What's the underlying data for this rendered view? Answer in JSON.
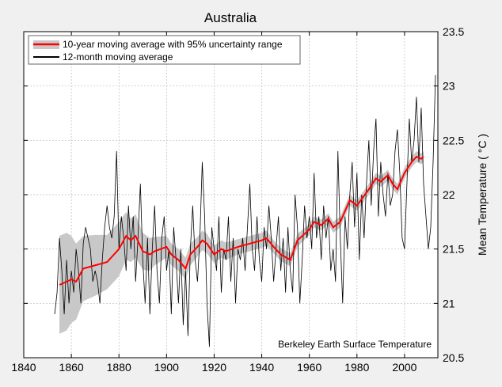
{
  "chart_data": {
    "type": "line",
    "title": "Australia",
    "xlabel": "",
    "ylabel": "Mean Temperature ( °C )",
    "annotation": "Berkeley Earth Surface Temperature",
    "xlim": [
      1840,
      2014
    ],
    "ylim": [
      20.5,
      23.5
    ],
    "xticks": [
      1840,
      1860,
      1880,
      1900,
      1920,
      1940,
      1960,
      1980,
      2000
    ],
    "yticks": [
      20.5,
      21,
      21.5,
      22,
      22.5,
      23,
      23.5
    ],
    "ytick_labels": [
      "20.5",
      "21",
      "21.5",
      "22",
      "22.5",
      "23",
      "23.5"
    ],
    "y_axis_side": "right",
    "grid": true,
    "legend_placement": "top-left",
    "colors": {
      "smooth": "#ff0000",
      "band": "#c8c8c8",
      "annual": "#000000",
      "background": "#f0f0f0"
    },
    "series": [
      {
        "name": "10-year moving average with 95% uncertainty range",
        "x": [
          1855,
          1858,
          1860,
          1862,
          1865,
          1870,
          1875,
          1880,
          1883,
          1885,
          1887,
          1890,
          1893,
          1895,
          1900,
          1902,
          1905,
          1908,
          1910,
          1913,
          1915,
          1917,
          1920,
          1923,
          1925,
          1930,
          1935,
          1940,
          1942,
          1945,
          1948,
          1952,
          1955,
          1960,
          1962,
          1965,
          1968,
          1970,
          1973,
          1977,
          1980,
          1985,
          1988,
          1990,
          1993,
          1995,
          1997,
          2000,
          2003,
          2005,
          2007,
          2008
        ],
        "y": [
          21.17,
          21.2,
          21.22,
          21.2,
          21.32,
          21.35,
          21.38,
          21.5,
          21.62,
          21.58,
          21.62,
          21.48,
          21.45,
          21.48,
          21.52,
          21.45,
          21.4,
          21.32,
          21.45,
          21.52,
          21.58,
          21.55,
          21.45,
          21.5,
          21.48,
          21.52,
          21.55,
          21.58,
          21.6,
          21.52,
          21.45,
          21.4,
          21.58,
          21.68,
          21.75,
          21.72,
          21.78,
          21.7,
          21.75,
          21.95,
          21.9,
          22.05,
          22.15,
          22.12,
          22.18,
          22.1,
          22.05,
          22.2,
          22.3,
          22.35,
          22.33,
          22.35
        ],
        "uncertainty": [
          0.45,
          0.45,
          0.4,
          0.35,
          0.3,
          0.28,
          0.25,
          0.25,
          0.22,
          0.2,
          0.2,
          0.17,
          0.15,
          0.13,
          0.1,
          0.1,
          0.1,
          0.1,
          0.1,
          0.09,
          0.09,
          0.09,
          0.08,
          0.08,
          0.08,
          0.07,
          0.07,
          0.07,
          0.07,
          0.06,
          0.06,
          0.06,
          0.06,
          0.05,
          0.05,
          0.05,
          0.05,
          0.05,
          0.05,
          0.05,
          0.05,
          0.05,
          0.05,
          0.05,
          0.05,
          0.05,
          0.05,
          0.05,
          0.05,
          0.05,
          0.05,
          0.05
        ]
      },
      {
        "name": "12-month moving average",
        "x_start": 1853,
        "x_step": 1,
        "y": [
          20.9,
          21.1,
          21.6,
          21.3,
          20.9,
          21.4,
          21.0,
          21.3,
          21.1,
          21.5,
          21.3,
          21.0,
          21.55,
          21.7,
          21.6,
          21.5,
          21.2,
          21.3,
          21.2,
          21.0,
          21.4,
          21.7,
          21.9,
          21.7,
          21.6,
          21.8,
          22.4,
          21.5,
          21.8,
          21.6,
          21.3,
          21.9,
          21.5,
          21.8,
          21.2,
          21.6,
          22.1,
          21.4,
          21.0,
          21.6,
          20.9,
          21.5,
          21.9,
          21.3,
          21.0,
          21.6,
          21.8,
          21.3,
          21.5,
          20.9,
          21.7,
          21.4,
          21.0,
          21.5,
          20.8,
          21.3,
          20.7,
          21.5,
          21.9,
          21.4,
          21.2,
          21.6,
          22.3,
          21.8,
          21.0,
          20.6,
          21.7,
          21.5,
          21.3,
          21.8,
          21.1,
          21.5,
          21.4,
          21.8,
          21.2,
          21.6,
          21.0,
          21.5,
          21.4,
          21.6,
          21.3,
          21.7,
          22.1,
          21.5,
          21.3,
          21.8,
          21.4,
          21.2,
          21.7,
          21.5,
          21.9,
          21.6,
          21.2,
          21.5,
          21.8,
          21.3,
          21.6,
          21.1,
          21.7,
          21.3,
          21.1,
          22.0,
          21.7,
          21.0,
          21.4,
          21.9,
          21.6,
          21.8,
          21.5,
          22.2,
          21.6,
          21.8,
          21.4,
          21.9,
          21.6,
          21.8,
          21.3,
          21.5,
          21.2,
          22.4,
          21.6,
          21.0,
          21.8,
          21.5,
          22.0,
          22.3,
          21.7,
          22.2,
          21.4,
          22.0,
          21.6,
          22.1,
          22.5,
          21.9,
          22.4,
          22.7,
          21.8,
          22.3,
          22.0,
          21.8,
          22.2,
          21.9,
          22.0,
          22.4,
          22.6,
          22.2,
          21.6,
          21.5,
          22.1,
          22.7,
          22.3,
          22.5,
          22.9,
          22.3,
          22.8,
          22.1,
          21.8,
          21.5,
          21.7,
          22.3,
          23.1
        ]
      }
    ]
  }
}
